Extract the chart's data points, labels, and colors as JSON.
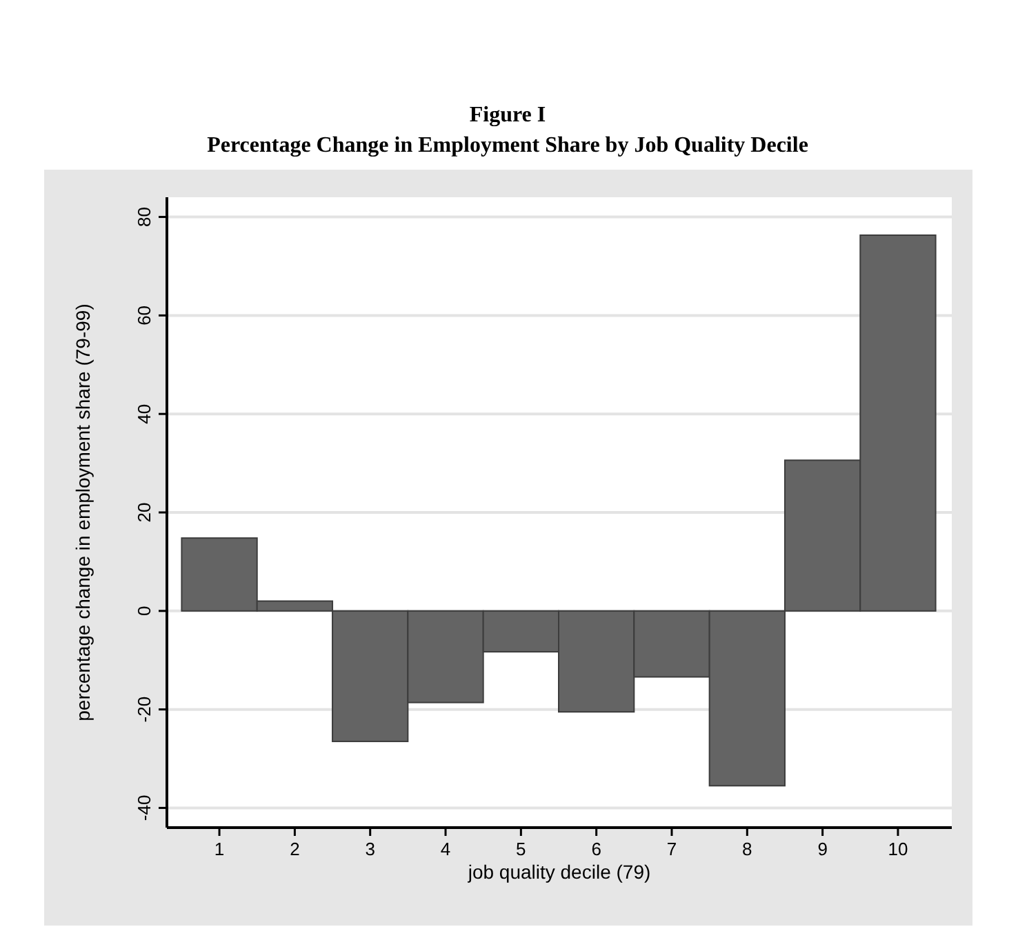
{
  "chart_data": {
    "type": "bar",
    "title": "Figure I",
    "subtitle": "Percentage Change in Employment Share by Job Quality Decile",
    "xlabel": "job quality decile (79)",
    "ylabel": "percentage change in employment share (79-99)",
    "categories": [
      "1",
      "2",
      "3",
      "4",
      "5",
      "6",
      "7",
      "8",
      "9",
      "10"
    ],
    "values": [
      14.8,
      2.0,
      -26.5,
      -18.6,
      -8.3,
      -20.5,
      -13.4,
      -35.5,
      30.6,
      76.3
    ],
    "color": "#646464",
    "ylim": [
      -44,
      84
    ],
    "yticks": [
      -40,
      -20,
      0,
      20,
      40,
      60,
      80
    ],
    "grid": "y"
  }
}
